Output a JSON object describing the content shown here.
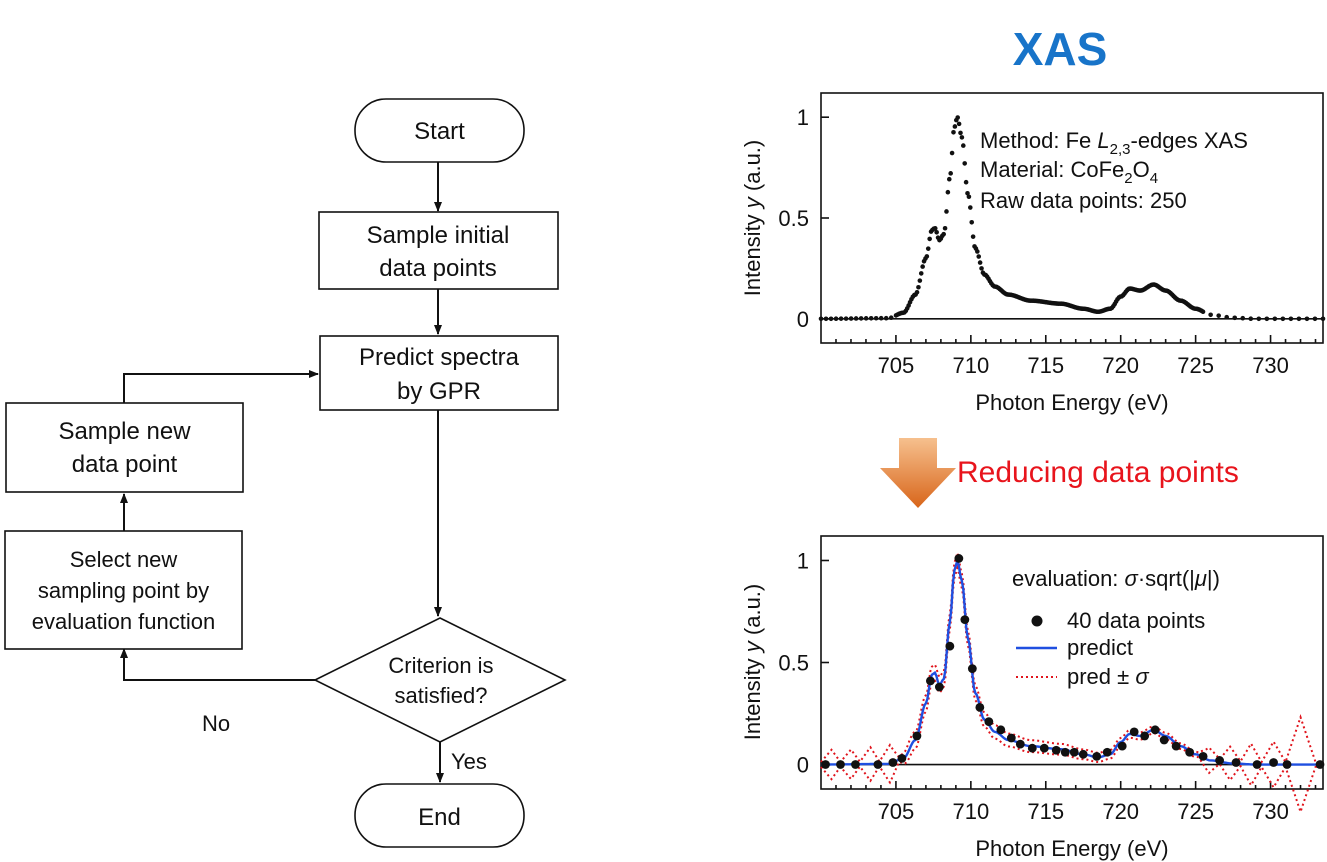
{
  "flowchart": {
    "start": "Start",
    "sample_initial": [
      "Sample initial",
      "data points"
    ],
    "predict": [
      "Predict spectra",
      "by GPR"
    ],
    "criterion": [
      "Criterion is",
      "satisfied?"
    ],
    "yes": "Yes",
    "no": "No",
    "end": "End",
    "sample_new": [
      "Sample new",
      "data point"
    ],
    "select_new": [
      "Select new",
      "sampling point by",
      "evaluation function"
    ]
  },
  "title": "XAS",
  "reducing_label": "Reducing data points",
  "colors": {
    "title": "#1874c9",
    "reducing": "#e8141c",
    "predict": "#1f4fe0",
    "sigma": "#e0141c",
    "arrow_top": "#f3b47a",
    "arrow_bottom": "#d96a1a"
  },
  "chart_data": [
    {
      "type": "scatter",
      "xlabel": "Photon Energy (eV)",
      "ylabel": {
        "pre": "Intensity ",
        "var": "y",
        "post": " (a.u.)"
      },
      "xlim": [
        700,
        733.5
      ],
      "ylim": [
        -0.12,
        1.12
      ],
      "xticks": [
        705,
        710,
        715,
        720,
        725,
        730
      ],
      "yticks": [
        {
          "v": 0,
          "label": "0"
        },
        {
          "v": 0.5,
          "label": "0.5"
        },
        {
          "v": 1,
          "label": "1"
        }
      ],
      "annotation": {
        "method_pre": "Method: Fe ",
        "method_var": "L",
        "method_sub": "2,3",
        "method_post": "-edges XAS",
        "material_pre": "Material: CoFe",
        "material_sub1": "2",
        "material_mid": "O",
        "material_sub2": "4",
        "raw": "Raw data points: 250"
      },
      "n_points": 250,
      "profile": [
        [
          700,
          0
        ],
        [
          704.5,
          0.003
        ],
        [
          705.5,
          0.03
        ],
        [
          706.3,
          0.12
        ],
        [
          707.0,
          0.3
        ],
        [
          707.4,
          0.44
        ],
        [
          707.6,
          0.45
        ],
        [
          707.9,
          0.39
        ],
        [
          708.2,
          0.42
        ],
        [
          708.6,
          0.7
        ],
        [
          708.9,
          0.95
        ],
        [
          709.1,
          1.0
        ],
        [
          709.4,
          0.9
        ],
        [
          709.8,
          0.62
        ],
        [
          710.3,
          0.35
        ],
        [
          710.9,
          0.22
        ],
        [
          711.6,
          0.16
        ],
        [
          712.5,
          0.12
        ],
        [
          714.0,
          0.09
        ],
        [
          716.0,
          0.075
        ],
        [
          717.5,
          0.05
        ],
        [
          718.5,
          0.035
        ],
        [
          719.3,
          0.05
        ],
        [
          720.0,
          0.11
        ],
        [
          720.6,
          0.15
        ],
        [
          721.3,
          0.14
        ],
        [
          722.2,
          0.17
        ],
        [
          723.0,
          0.14
        ],
        [
          724.0,
          0.09
        ],
        [
          725.0,
          0.05
        ],
        [
          726.0,
          0.02
        ],
        [
          727.5,
          0.005
        ],
        [
          729,
          0
        ],
        [
          733.5,
          0
        ]
      ]
    },
    {
      "type": "scatter",
      "xlabel": "Photon Energy (eV)",
      "ylabel": {
        "pre": "Intensity ",
        "var": "y",
        "post": " (a.u.)"
      },
      "xlim": [
        700,
        733.5
      ],
      "ylim": [
        -0.12,
        1.12
      ],
      "xticks": [
        705,
        710,
        715,
        720,
        725,
        730
      ],
      "yticks": [
        {
          "v": 0,
          "label": "0"
        },
        {
          "v": 0.5,
          "label": "0.5"
        },
        {
          "v": 1,
          "label": "1"
        }
      ],
      "legend_title": {
        "pre": "evaluation: ",
        "sigma": "σ",
        "mid": "·sqrt(|",
        "mu": "μ",
        "post": "|)"
      },
      "series": [
        {
          "name": "40 data points",
          "kind": "points",
          "x": [
            700.3,
            701.3,
            702.3,
            703.8,
            704.8,
            705.4,
            706.4,
            707.3,
            707.9,
            708.6,
            709.2,
            709.6,
            710.1,
            710.6,
            711.2,
            712.0,
            712.7,
            713.3,
            714.1,
            714.9,
            715.7,
            716.3,
            716.9,
            717.5,
            718.4,
            719.1,
            720.1,
            720.9,
            721.6,
            722.3,
            722.9,
            723.7,
            724.6,
            725.5,
            726.6,
            727.7,
            729.1,
            730.2,
            731.1,
            733.3
          ],
          "y": [
            0.0,
            0.0,
            0.0,
            0.0,
            0.01,
            0.03,
            0.14,
            0.41,
            0.38,
            0.58,
            1.01,
            0.71,
            0.47,
            0.28,
            0.21,
            0.17,
            0.13,
            0.1,
            0.08,
            0.08,
            0.07,
            0.06,
            0.06,
            0.05,
            0.04,
            0.06,
            0.09,
            0.16,
            0.14,
            0.17,
            0.12,
            0.09,
            0.06,
            0.04,
            0.02,
            0.01,
            0.0,
            0.01,
            0.0,
            0.0
          ]
        },
        {
          "name": "predict",
          "kind": "line"
        },
        {
          "name": "pred ± σ",
          "name_pre": "pred ± ",
          "name_var": "σ",
          "kind": "band"
        }
      ],
      "sigma_x": [
        700,
        700.7,
        701.3,
        702.0,
        702.6,
        703.3,
        703.9,
        704.6,
        705.2,
        705.9,
        725.2,
        725.9,
        726.6,
        727.3,
        728.0,
        728.7,
        729.4,
        730.2,
        731.0,
        732.0,
        733.0,
        733.5
      ],
      "sigma_amp": [
        0.0,
        0.06,
        0.0,
        0.06,
        0.0,
        0.07,
        0.0,
        0.08,
        0.0,
        0.03,
        0.0,
        0.05,
        0.0,
        0.07,
        0.0,
        0.09,
        0.0,
        0.1,
        0.0,
        0.22,
        0.0,
        0.0
      ]
    }
  ]
}
